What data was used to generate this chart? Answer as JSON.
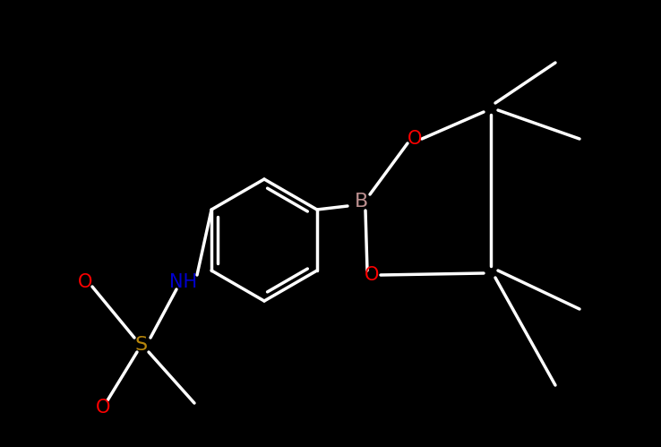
{
  "bg": "#000000",
  "bond_color": "#ffffff",
  "lw": 2.0,
  "atom_colors": {
    "B": "#bc8f8f",
    "O": "#ff0000",
    "N": "#0000cd",
    "S": "#b8860b",
    "C": "#ffffff",
    "default": "#ffffff"
  },
  "font_size": 15,
  "fig_w": 7.38,
  "fig_h": 4.99,
  "dpi": 100
}
